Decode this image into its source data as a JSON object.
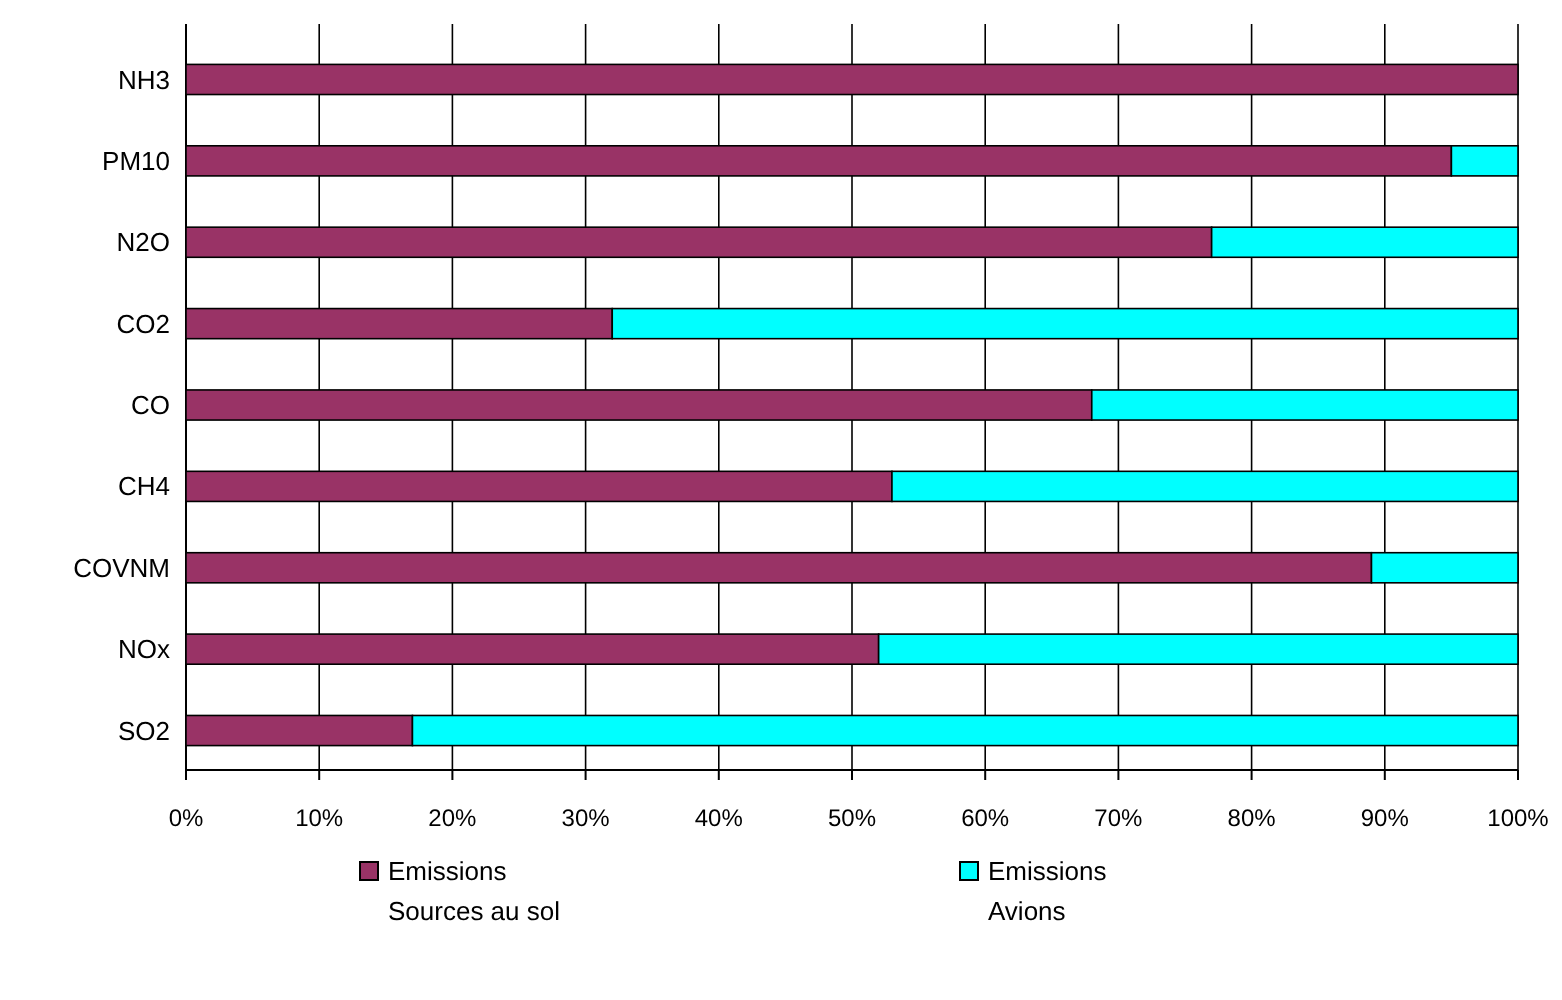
{
  "chart_data": {
    "type": "bar",
    "orientation": "horizontal",
    "stacked": true,
    "categories": [
      "NH3",
      "PM10",
      "N2O",
      "CO2",
      "CO",
      "CH4",
      "COVNM",
      "NOx",
      "SO2"
    ],
    "series": [
      {
        "name": "Emissions\nSources au sol",
        "color": "#993366",
        "values": [
          100,
          95,
          77,
          32,
          68,
          53,
          89,
          52,
          17
        ]
      },
      {
        "name": "Emissions\nAvions",
        "color": "#00ffff",
        "values": [
          0,
          5,
          23,
          68,
          32,
          47,
          11,
          48,
          83
        ]
      }
    ],
    "xlim": [
      0,
      100
    ],
    "xticks": [
      {
        "value": 0,
        "label": "0%"
      },
      {
        "value": 10,
        "label": "10%"
      },
      {
        "value": 20,
        "label": "20%"
      },
      {
        "value": 30,
        "label": "30%"
      },
      {
        "value": 40,
        "label": "40%"
      },
      {
        "value": 50,
        "label": "50%"
      },
      {
        "value": 60,
        "label": "60%"
      },
      {
        "value": 70,
        "label": "70%"
      },
      {
        "value": 80,
        "label": "80%"
      },
      {
        "value": 90,
        "label": "90%"
      },
      {
        "value": 100,
        "label": "100%"
      }
    ],
    "grid": "x",
    "legend": "bottom"
  }
}
